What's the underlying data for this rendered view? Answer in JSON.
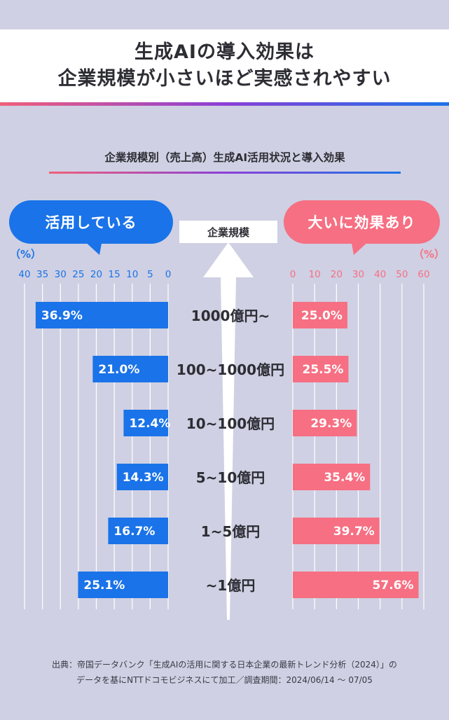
{
  "title": {
    "line1": "生成AIの導入効果は",
    "line2": "企業規模が小さいほど実感されやすい"
  },
  "subtitle": "企業規模別（売上高）生成AI活用状況と導入効果",
  "left_header": "活用している",
  "right_header": "大いに効果あり",
  "center_header": "企業規模",
  "unit_label": "（%）",
  "colors": {
    "left_series": "#1a73e8",
    "right_series": "#f66f82",
    "background": "#cfd0e3"
  },
  "chart_data": {
    "type": "bar",
    "layout": "butterfly",
    "categories": [
      "1000億円~",
      "100~1000億円",
      "10~100億円",
      "5~10億円",
      "1~5億円",
      "~1億円"
    ],
    "series": [
      {
        "name": "活用している",
        "values": [
          36.9,
          21.0,
          12.4,
          14.3,
          16.7,
          25.1
        ],
        "labels": [
          "36.9%",
          "21.0%",
          "12.4%",
          "14.3%",
          "16.7%",
          "25.1%"
        ],
        "axis_ticks": [
          "40",
          "35",
          "30",
          "25",
          "20",
          "15",
          "10",
          "5",
          "0"
        ],
        "xlim": [
          0,
          40
        ]
      },
      {
        "name": "大いに効果あり",
        "values": [
          25.0,
          25.5,
          29.3,
          35.4,
          39.7,
          57.6
        ],
        "labels": [
          "25.0%",
          "25.5%",
          "29.3%",
          "35.4%",
          "39.7%",
          "57.6%"
        ],
        "axis_ticks": [
          "0",
          "10",
          "20",
          "30",
          "40",
          "50",
          "60"
        ],
        "xlim": [
          0,
          60
        ]
      }
    ],
    "grid": true
  },
  "source_note": {
    "line1": "出典：帝国データバンク「生成AIの活用に関する日本企業の最新トレンド分析（2024）」の",
    "line2": "データを基にNTTドコモビジネスにて加工／調査期間：2024/06/14 〜 07/05"
  }
}
